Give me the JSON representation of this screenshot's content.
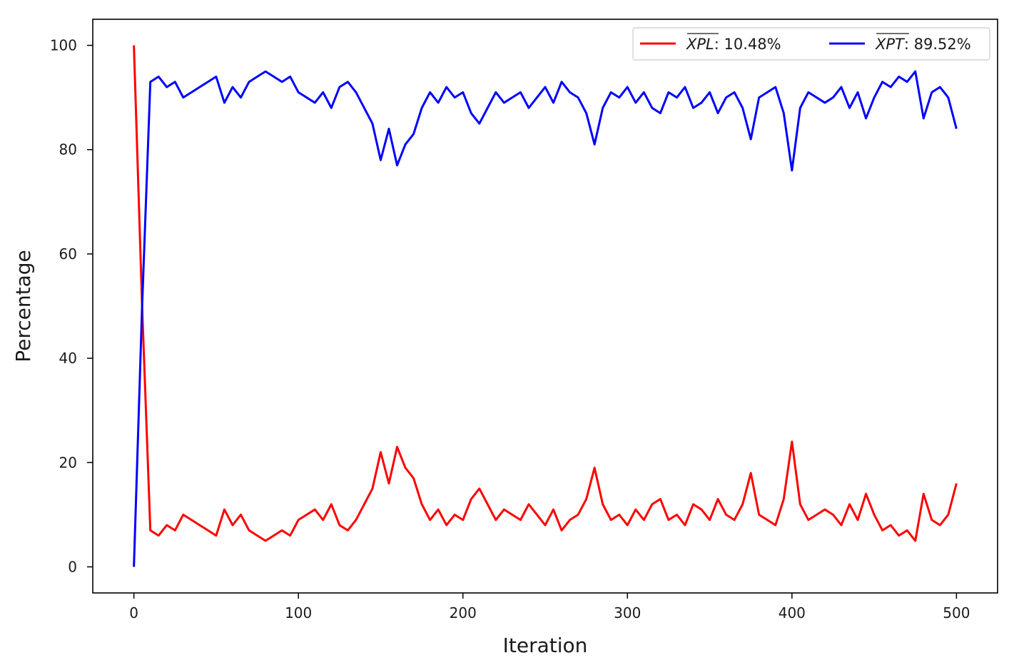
{
  "chart_data": {
    "type": "line",
    "title": "",
    "xlabel": "Iteration",
    "ylabel": "Percentage",
    "xlim": [
      -25,
      525
    ],
    "ylim": [
      -5,
      105
    ],
    "xticks": [
      0,
      100,
      200,
      300,
      400,
      500
    ],
    "yticks": [
      0,
      20,
      40,
      60,
      80,
      100
    ],
    "grid": false,
    "legend_position": "top-right",
    "colors": {
      "xpl": "#ff0000",
      "xpt": "#0000ff",
      "axes": "#000000"
    },
    "x": [
      0,
      5,
      10,
      15,
      20,
      25,
      30,
      35,
      40,
      45,
      50,
      55,
      60,
      65,
      70,
      75,
      80,
      85,
      90,
      95,
      100,
      105,
      110,
      115,
      120,
      125,
      130,
      135,
      140,
      145,
      150,
      155,
      160,
      165,
      170,
      175,
      180,
      185,
      190,
      195,
      200,
      205,
      210,
      215,
      220,
      225,
      230,
      235,
      240,
      245,
      250,
      255,
      260,
      265,
      270,
      275,
      280,
      285,
      290,
      295,
      300,
      305,
      310,
      315,
      320,
      325,
      330,
      335,
      340,
      345,
      350,
      355,
      360,
      365,
      370,
      375,
      380,
      385,
      390,
      395,
      400,
      405,
      410,
      415,
      420,
      425,
      430,
      435,
      440,
      445,
      450,
      455,
      460,
      465,
      470,
      475,
      480,
      485,
      490,
      495,
      500
    ],
    "series": [
      {
        "key": "xpl",
        "legend_symbol": "XPL",
        "legend_value": ": 10.48%",
        "values": [
          100,
          50,
          7,
          6,
          8,
          7,
          10,
          9,
          8,
          7,
          6,
          11,
          8,
          10,
          7,
          6,
          5,
          6,
          7,
          6,
          9,
          10,
          11,
          9,
          12,
          8,
          7,
          9,
          12,
          15,
          22,
          16,
          23,
          19,
          17,
          12,
          9,
          11,
          8,
          10,
          9,
          13,
          15,
          12,
          9,
          11,
          10,
          9,
          12,
          10,
          8,
          11,
          7,
          9,
          10,
          13,
          19,
          12,
          9,
          10,
          8,
          11,
          9,
          12,
          13,
          9,
          10,
          8,
          12,
          11,
          9,
          13,
          10,
          9,
          12,
          18,
          10,
          9,
          8,
          13,
          24,
          12,
          9,
          10,
          11,
          10,
          8,
          12,
          9,
          14,
          10,
          7,
          8,
          6,
          7,
          5,
          14,
          9,
          8,
          10,
          16
        ]
      },
      {
        "key": "xpt",
        "legend_symbol": "XPT",
        "legend_value": ": 89.52%",
        "values": [
          0,
          50,
          93,
          94,
          92,
          93,
          90,
          91,
          92,
          93,
          94,
          89,
          92,
          90,
          93,
          94,
          95,
          94,
          93,
          94,
          91,
          90,
          89,
          91,
          88,
          92,
          93,
          91,
          88,
          85,
          78,
          84,
          77,
          81,
          83,
          88,
          91,
          89,
          92,
          90,
          91,
          87,
          85,
          88,
          91,
          89,
          90,
          91,
          88,
          90,
          92,
          89,
          93,
          91,
          90,
          87,
          81,
          88,
          91,
          90,
          92,
          89,
          91,
          88,
          87,
          91,
          90,
          92,
          88,
          89,
          91,
          87,
          90,
          91,
          88,
          82,
          90,
          91,
          92,
          87,
          76,
          88,
          91,
          90,
          89,
          90,
          92,
          88,
          91,
          86,
          90,
          93,
          92,
          94,
          93,
          95,
          86,
          91,
          92,
          90,
          84
        ]
      }
    ]
  }
}
